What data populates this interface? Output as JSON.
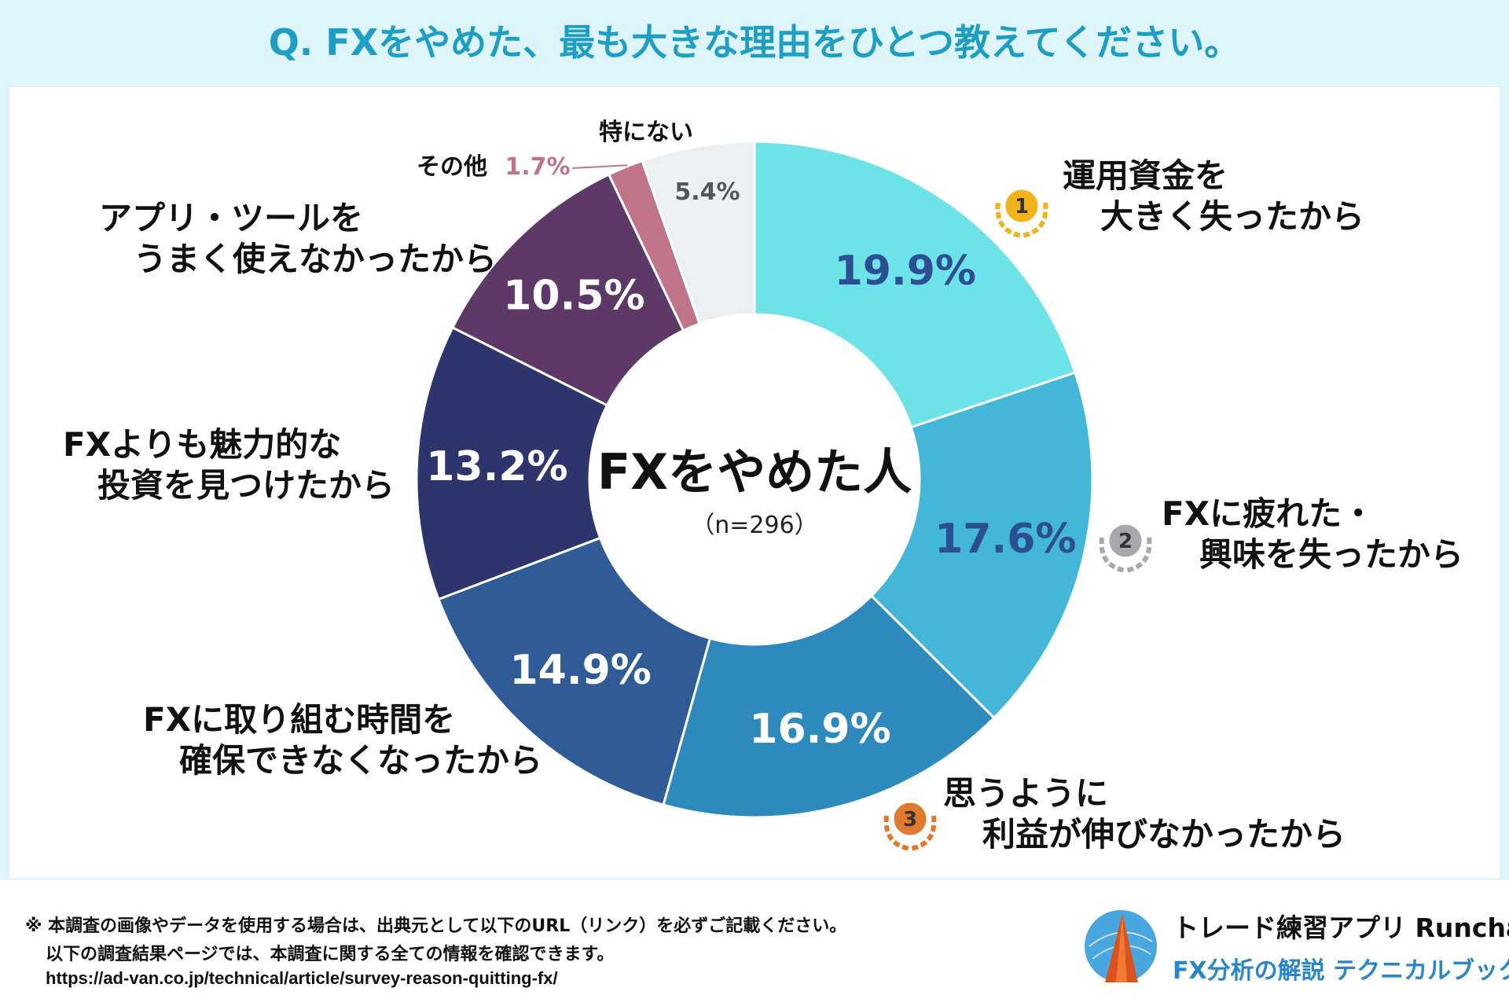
{
  "chart_data": {
    "type": "pie",
    "title": "Q. FXをやめた、最も大きな理由をひとつ教えてください。",
    "center_title": "FXをやめた人",
    "center_sub": "（n=296）",
    "unit": "%",
    "slices": [
      {
        "label_lines": [
          "運用資金を",
          "大きく失ったから"
        ],
        "value": 19.9,
        "value_label": "19.9%",
        "color": "#6de3e8",
        "value_color": "#2c4f92",
        "rank": "1"
      },
      {
        "label_lines": [
          "FXに疲れた・",
          "興味を失ったから"
        ],
        "value": 17.6,
        "value_label": "17.6%",
        "color": "#44b6d7",
        "value_color": "#2c4f92",
        "rank": "2"
      },
      {
        "label_lines": [
          "思うように",
          "利益が伸びなかったから"
        ],
        "value": 16.9,
        "value_label": "16.9%",
        "color": "#2e8abc",
        "value_color": "#ffffff",
        "rank": "3"
      },
      {
        "label_lines": [
          "FXに取り組む時間を",
          "確保できなくなったから"
        ],
        "value": 14.9,
        "value_label": "14.9%",
        "color": "#2f5c97",
        "value_color": "#ffffff",
        "rank": ""
      },
      {
        "label_lines": [
          "FXよりも魅力的な",
          "投資を見つけたから"
        ],
        "value": 13.2,
        "value_label": "13.2%",
        "color": "#2e346c",
        "value_color": "#ffffff",
        "rank": ""
      },
      {
        "label_lines": [
          "アプリ・ツールを",
          "うまく使えなかったから"
        ],
        "value": 10.5,
        "value_label": "10.5%",
        "color": "#5c3966",
        "value_color": "#ffffff",
        "rank": ""
      },
      {
        "label_lines": [
          "その他"
        ],
        "value": 1.7,
        "value_label": "1.7%",
        "color": "#bf7487",
        "value_color": "#bf7487",
        "rank": ""
      },
      {
        "label_lines": [
          "特にない"
        ],
        "value": 5.4,
        "value_label": "5.4%",
        "color": "#eceff2",
        "value_color": "#555555",
        "rank": ""
      }
    ]
  },
  "footer": {
    "line1": "※ 本調査の画像やデータを使用する場合は、出典元として以下のURL（リンク）を必ずご記載ください。",
    "line2": "以下の調査結果ページでは、本調査に関する全ての情報を確認できます。",
    "line3": "https://ad-van.co.jp/technical/article/survey-reason-quitting-fx/"
  },
  "brand": {
    "title": "トレード練習アプリ  Runcha",
    "subtitle": "FX分析の解説  テクニカルブック"
  },
  "colors": {
    "title": "#1e9ec3",
    "frame": "#def5fb",
    "gold": "#f2b21c",
    "silver": "#a8a8ac",
    "bronze": "#e0792e"
  }
}
